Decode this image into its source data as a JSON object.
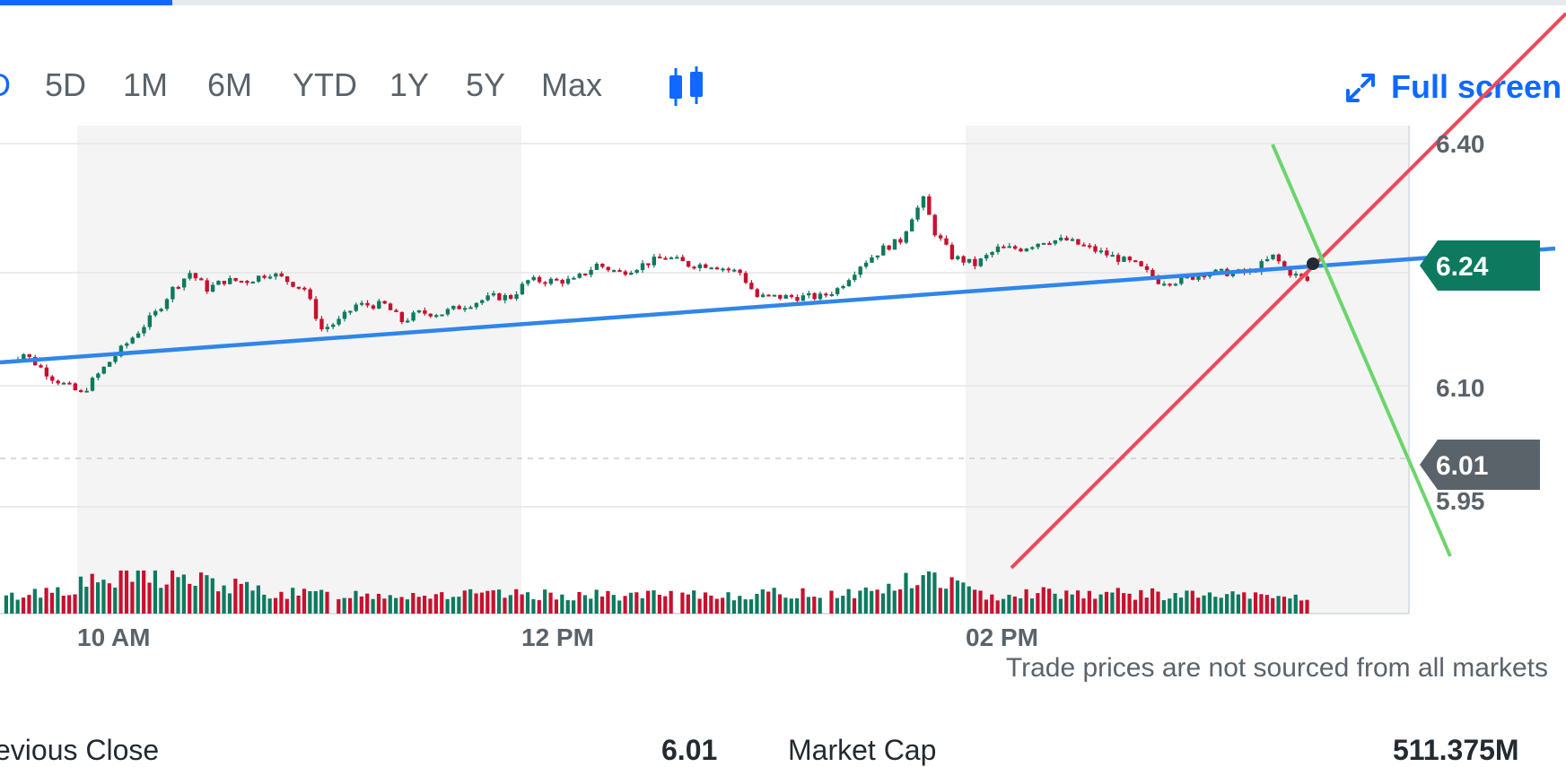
{
  "header": {
    "progress_fraction": 0.11,
    "ranges": [
      {
        "label": "D",
        "partial": true
      },
      {
        "label": "5D"
      },
      {
        "label": "1M"
      },
      {
        "label": "6M"
      },
      {
        "label": "YTD"
      },
      {
        "label": "1Y"
      },
      {
        "label": "5Y"
      },
      {
        "label": "Max"
      }
    ],
    "fullscreen_label": "Full screen",
    "candle_icon": "candlestick-icon",
    "expand_icon": "expand-arrows-icon"
  },
  "colors": {
    "up": "#0d7a5f",
    "down": "#c8102e",
    "accent": "#0f69ff",
    "shade": "#f4f4f4",
    "current_tag": "#0d7a5f",
    "prev_tag": "#5b636a",
    "trend_blue": "#2f86ea",
    "trend_red": "#f0485a",
    "trend_green": "#6cd56c"
  },
  "chart_data": {
    "type": "candlestick",
    "x_tick_labels": [
      "10 AM",
      "12 PM",
      "02 PM"
    ],
    "y_tick_labels": [
      "6.40",
      "6.10",
      "5.95"
    ],
    "ylim": [
      5.85,
      6.42
    ],
    "current_price_label": "6.24",
    "previous_close_label": "6.01",
    "current_price": 6.24,
    "previous_close": 6.01,
    "grid": true,
    "shaded_hour_bands": true,
    "price_path": [
      [
        0,
        6.13
      ],
      [
        3,
        6.14
      ],
      [
        8,
        6.11
      ],
      [
        13,
        6.09
      ],
      [
        18,
        6.13
      ],
      [
        22,
        6.16
      ],
      [
        26,
        6.19
      ],
      [
        29,
        6.22
      ],
      [
        32,
        6.24
      ],
      [
        35,
        6.22
      ],
      [
        38,
        6.23
      ],
      [
        42,
        6.23
      ],
      [
        46,
        6.24
      ],
      [
        49,
        6.23
      ],
      [
        52,
        6.22
      ],
      [
        55,
        6.17
      ],
      [
        58,
        6.18
      ],
      [
        61,
        6.2
      ],
      [
        66,
        6.2
      ],
      [
        69,
        6.18
      ],
      [
        72,
        6.19
      ],
      [
        76,
        6.19
      ],
      [
        80,
        6.2
      ],
      [
        85,
        6.21
      ],
      [
        88,
        6.21
      ],
      [
        91,
        6.23
      ],
      [
        95,
        6.23
      ],
      [
        99,
        6.23
      ],
      [
        103,
        6.25
      ],
      [
        107,
        6.24
      ],
      [
        111,
        6.25
      ],
      [
        115,
        6.26
      ],
      [
        119,
        6.25
      ],
      [
        123,
        6.25
      ],
      [
        128,
        6.24
      ],
      [
        131,
        6.21
      ],
      [
        134,
        6.21
      ],
      [
        138,
        6.21
      ],
      [
        142,
        6.21
      ],
      [
        145,
        6.22
      ],
      [
        149,
        6.25
      ],
      [
        153,
        6.27
      ],
      [
        156,
        6.28
      ],
      [
        158,
        6.31
      ],
      [
        160,
        6.33
      ],
      [
        162,
        6.29
      ],
      [
        165,
        6.26
      ],
      [
        169,
        6.25
      ],
      [
        173,
        6.27
      ],
      [
        177,
        6.27
      ],
      [
        181,
        6.28
      ],
      [
        185,
        6.28
      ],
      [
        189,
        6.27
      ],
      [
        193,
        6.26
      ],
      [
        197,
        6.25
      ],
      [
        201,
        6.23
      ],
      [
        205,
        6.23
      ],
      [
        209,
        6.24
      ],
      [
        213,
        6.24
      ],
      [
        217,
        6.24
      ],
      [
        221,
        6.26
      ],
      [
        224,
        6.24
      ],
      [
        227,
        6.23
      ]
    ],
    "bars_count": 228,
    "volume_levels": [
      [
        0,
        0.25
      ],
      [
        25,
        0.9
      ],
      [
        48,
        0.35
      ],
      [
        120,
        0.3
      ],
      [
        150,
        0.4
      ],
      [
        160,
        0.75
      ],
      [
        163,
        0.8
      ],
      [
        170,
        0.3
      ],
      [
        180,
        0.4
      ],
      [
        227,
        0.25
      ]
    ]
  },
  "stats": [
    {
      "label": "evious Close",
      "value": "6.01"
    },
    {
      "label": "Market Cap",
      "value": "511.375M"
    }
  ],
  "footer": {
    "disclaimer": "Trade prices are not sourced from all markets"
  }
}
